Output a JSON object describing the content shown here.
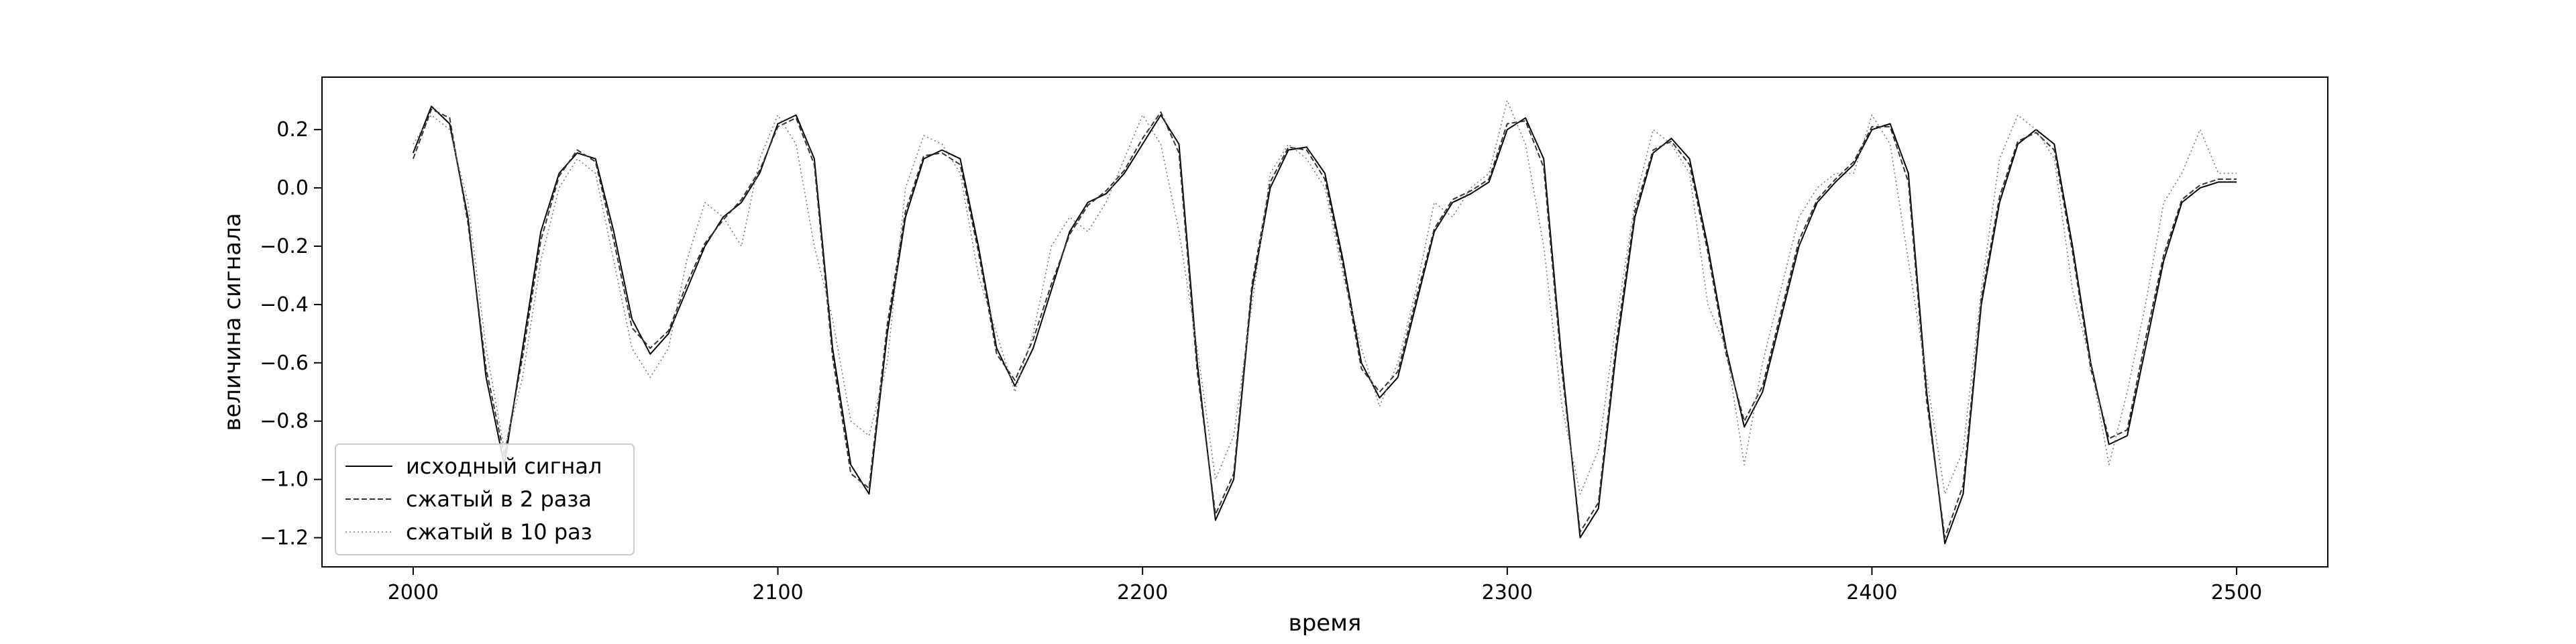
{
  "chart_data": {
    "type": "line",
    "title": "",
    "xlabel": "время",
    "ylabel": "величина сигнала",
    "xlim": [
      1975,
      2525
    ],
    "ylim": [
      -1.3,
      0.38
    ],
    "x_ticks": [
      2000,
      2100,
      2200,
      2300,
      2400,
      2500
    ],
    "y_ticks": [
      -1.2,
      -1.0,
      -0.8,
      -0.6,
      -0.4,
      -0.2,
      0.0,
      0.2
    ],
    "grid": false,
    "legend_position": "lower-left",
    "x": [
      2000,
      2005,
      2010,
      2015,
      2020,
      2025,
      2030,
      2035,
      2040,
      2045,
      2050,
      2055,
      2060,
      2065,
      2070,
      2075,
      2080,
      2085,
      2090,
      2095,
      2100,
      2105,
      2110,
      2115,
      2120,
      2125,
      2130,
      2135,
      2140,
      2145,
      2150,
      2155,
      2160,
      2165,
      2170,
      2175,
      2180,
      2185,
      2190,
      2195,
      2200,
      2205,
      2210,
      2215,
      2220,
      2225,
      2230,
      2235,
      2240,
      2245,
      2250,
      2255,
      2260,
      2265,
      2270,
      2275,
      2280,
      2285,
      2290,
      2295,
      2300,
      2305,
      2310,
      2315,
      2320,
      2325,
      2330,
      2335,
      2340,
      2345,
      2350,
      2355,
      2360,
      2365,
      2370,
      2375,
      2380,
      2385,
      2390,
      2395,
      2400,
      2405,
      2410,
      2415,
      2420,
      2425,
      2430,
      2435,
      2440,
      2445,
      2450,
      2455,
      2460,
      2465,
      2470,
      2475,
      2480,
      2485,
      2490,
      2495,
      2500
    ],
    "series": [
      {
        "name": "исходный сигнал",
        "color": "#000000",
        "dash": "solid",
        "values": [
          0.12,
          0.28,
          0.22,
          -0.1,
          -0.65,
          -0.95,
          -0.55,
          -0.15,
          0.05,
          0.12,
          0.1,
          -0.15,
          -0.45,
          -0.57,
          -0.5,
          -0.35,
          -0.2,
          -0.1,
          -0.05,
          0.05,
          0.22,
          0.25,
          0.1,
          -0.55,
          -0.95,
          -1.05,
          -0.5,
          -0.1,
          0.1,
          0.13,
          0.1,
          -0.2,
          -0.55,
          -0.68,
          -0.55,
          -0.35,
          -0.15,
          -0.05,
          -0.02,
          0.05,
          0.15,
          0.25,
          0.15,
          -0.6,
          -1.14,
          -1.0,
          -0.35,
          0.0,
          0.13,
          0.14,
          0.05,
          -0.25,
          -0.6,
          -0.72,
          -0.65,
          -0.4,
          -0.15,
          -0.05,
          -0.02,
          0.02,
          0.2,
          0.24,
          0.1,
          -0.6,
          -1.2,
          -1.1,
          -0.55,
          -0.1,
          0.12,
          0.17,
          0.1,
          -0.2,
          -0.55,
          -0.82,
          -0.7,
          -0.45,
          -0.2,
          -0.05,
          0.02,
          0.08,
          0.2,
          0.22,
          0.05,
          -0.7,
          -1.22,
          -1.05,
          -0.4,
          -0.05,
          0.15,
          0.2,
          0.15,
          -0.2,
          -0.6,
          -0.88,
          -0.85,
          -0.55,
          -0.25,
          -0.05,
          0.0,
          0.02,
          0.02
        ]
      },
      {
        "name": "сжатый в 2 раза",
        "color": "#333333",
        "dash": "dashed",
        "values": [
          0.1,
          0.27,
          0.24,
          -0.12,
          -0.62,
          -0.92,
          -0.58,
          -0.18,
          0.04,
          0.13,
          0.09,
          -0.18,
          -0.48,
          -0.55,
          -0.49,
          -0.33,
          -0.19,
          -0.11,
          -0.04,
          0.06,
          0.21,
          0.24,
          0.08,
          -0.58,
          -0.98,
          -1.03,
          -0.47,
          -0.08,
          0.11,
          0.12,
          0.08,
          -0.22,
          -0.57,
          -0.66,
          -0.52,
          -0.33,
          -0.16,
          -0.06,
          -0.01,
          0.06,
          0.17,
          0.26,
          0.12,
          -0.63,
          -1.12,
          -0.98,
          -0.33,
          0.02,
          0.14,
          0.13,
          0.03,
          -0.27,
          -0.62,
          -0.7,
          -0.63,
          -0.38,
          -0.14,
          -0.04,
          -0.01,
          0.03,
          0.22,
          0.23,
          0.07,
          -0.63,
          -1.18,
          -1.08,
          -0.52,
          -0.08,
          0.13,
          0.16,
          0.08,
          -0.22,
          -0.57,
          -0.8,
          -0.68,
          -0.43,
          -0.18,
          -0.04,
          0.03,
          0.09,
          0.21,
          0.21,
          0.02,
          -0.73,
          -1.2,
          -1.02,
          -0.38,
          -0.03,
          0.16,
          0.19,
          0.13,
          -0.22,
          -0.62,
          -0.86,
          -0.83,
          -0.52,
          -0.23,
          -0.04,
          0.01,
          0.03,
          0.03
        ]
      },
      {
        "name": "сжатый в 10 раз",
        "color": "#777777",
        "dash": "dotted",
        "values": [
          0.15,
          0.25,
          0.2,
          -0.05,
          -0.55,
          -0.9,
          -0.65,
          -0.25,
          0.0,
          0.1,
          0.05,
          -0.25,
          -0.55,
          -0.65,
          -0.55,
          -0.25,
          -0.05,
          -0.1,
          -0.2,
          0.1,
          0.25,
          0.15,
          -0.2,
          -0.45,
          -0.8,
          -0.85,
          -0.6,
          0.0,
          0.18,
          0.15,
          0.05,
          -0.3,
          -0.5,
          -0.7,
          -0.5,
          -0.2,
          -0.1,
          -0.15,
          -0.05,
          0.1,
          0.25,
          0.15,
          -0.15,
          -0.55,
          -1.0,
          -0.85,
          -0.4,
          0.05,
          0.15,
          0.1,
          0.0,
          -0.3,
          -0.55,
          -0.75,
          -0.6,
          -0.35,
          -0.05,
          -0.1,
          0.0,
          0.05,
          0.3,
          0.15,
          -0.2,
          -0.75,
          -1.05,
          -0.9,
          -0.45,
          -0.05,
          0.2,
          0.15,
          0.05,
          -0.4,
          -0.55,
          -0.95,
          -0.6,
          -0.35,
          -0.1,
          0.0,
          0.05,
          0.05,
          0.25,
          0.15,
          -0.25,
          -0.65,
          -1.05,
          -0.9,
          -0.35,
          0.1,
          0.25,
          0.2,
          0.1,
          -0.35,
          -0.6,
          -0.95,
          -0.7,
          -0.4,
          -0.05,
          0.05,
          0.2,
          0.05,
          0.05
        ]
      }
    ]
  }
}
